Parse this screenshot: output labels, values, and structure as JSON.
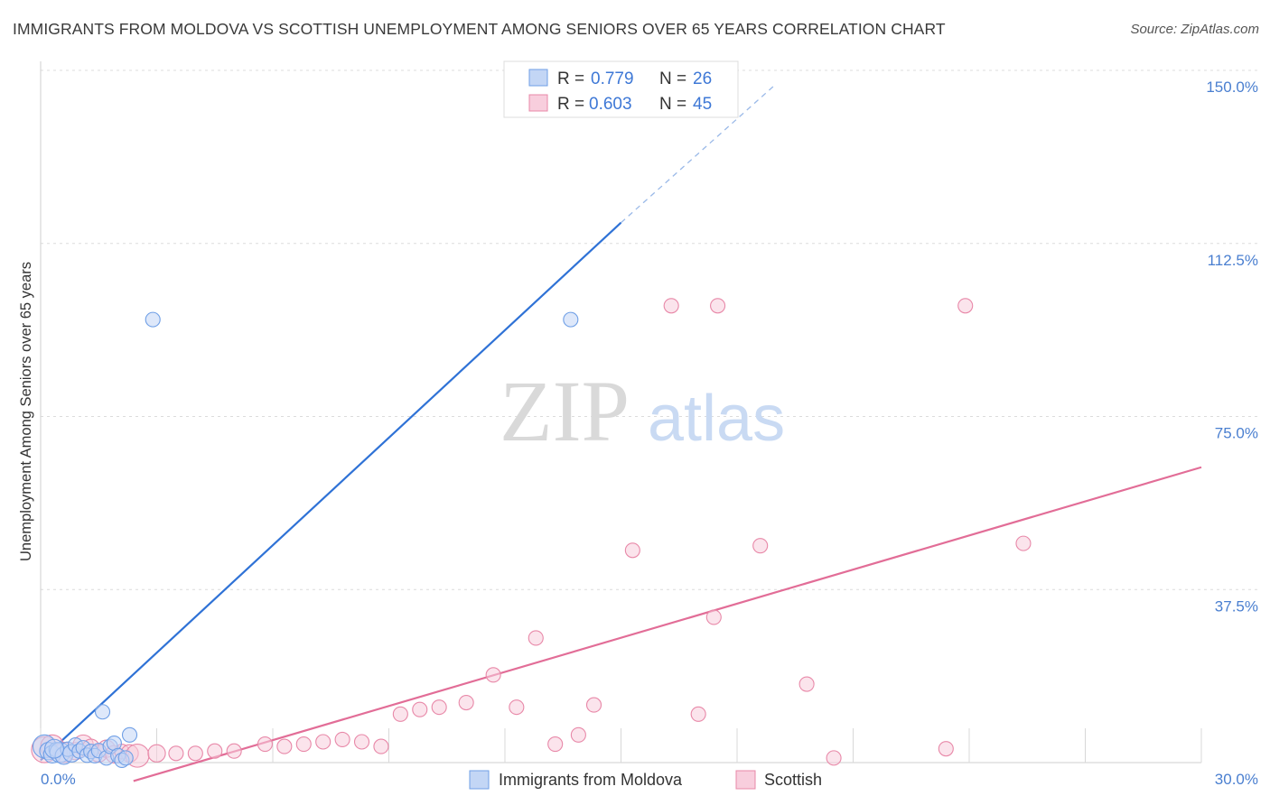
{
  "title": "IMMIGRANTS FROM MOLDOVA VS SCOTTISH UNEMPLOYMENT AMONG SENIORS OVER 65 YEARS CORRELATION CHART",
  "source": "Source: ZipAtlas.com",
  "watermark": {
    "zip": "ZIP",
    "atlas": "atlas"
  },
  "chart_data": {
    "type": "scatter",
    "title": "IMMIGRANTS FROM MOLDOVA VS SCOTTISH UNEMPLOYMENT AMONG SENIORS OVER 65 YEARS CORRELATION CHART",
    "xlabel": "",
    "ylabel": "Unemployment Among Seniors over 65 years",
    "xlim": [
      0,
      30
    ],
    "ylim": [
      0,
      150
    ],
    "x_tick_labels": [
      "0.0%",
      "30.0%"
    ],
    "y_ticks": [
      37.5,
      75.0,
      112.5,
      150.0
    ],
    "y_tick_labels": [
      "37.5%",
      "75.0%",
      "112.5%",
      "150.0%"
    ],
    "grid": true,
    "legend": {
      "placement": "top-center",
      "entries": [
        {
          "r_label": "R =",
          "r_value": "0.779",
          "n_label": "N =",
          "n_value": "26"
        },
        {
          "r_label": "R =",
          "r_value": "0.603",
          "n_label": "N =",
          "n_value": "45"
        }
      ]
    },
    "series": [
      {
        "name": "Immigrants from Moldova",
        "color": "#6f9fe6",
        "fill": "#c3d6f5",
        "trend": {
          "x0": 0.0,
          "y0": 0.5,
          "x1": 15.0,
          "y1": 117.0,
          "dash_to_x": 19.0,
          "dash_to_y": 147.0
        },
        "points": [
          [
            0.1,
            3.5,
            1.6
          ],
          [
            0.2,
            2.5,
            1.2
          ],
          [
            0.3,
            1.8,
            1.2
          ],
          [
            0.4,
            2.8,
            1.0
          ],
          [
            0.5,
            2.2,
            1.4
          ],
          [
            0.6,
            1.5,
            1.2
          ],
          [
            0.7,
            2.9,
            1.0
          ],
          [
            0.8,
            2.0,
            1.2
          ],
          [
            0.9,
            3.8,
            1.0
          ],
          [
            1.0,
            2.5,
            1.0
          ],
          [
            1.1,
            3.2,
            1.0
          ],
          [
            1.2,
            1.6,
            1.0
          ],
          [
            1.3,
            2.4,
            1.0
          ],
          [
            1.4,
            1.5,
            1.0
          ],
          [
            1.5,
            2.6,
            1.0
          ],
          [
            1.6,
            11.0,
            1.0
          ],
          [
            1.7,
            1.0,
            1.0
          ],
          [
            1.8,
            3.5,
            1.0
          ],
          [
            1.9,
            4.2,
            1.0
          ],
          [
            2.0,
            1.5,
            1.0
          ],
          [
            2.1,
            0.5,
            1.0
          ],
          [
            2.2,
            1.0,
            1.0
          ],
          [
            2.3,
            6.0,
            1.0
          ],
          [
            2.9,
            96.0,
            1.0
          ],
          [
            13.7,
            96.0,
            1.0
          ],
          [
            0.35,
            3.0,
            1.3
          ]
        ]
      },
      {
        "name": "Scottish",
        "color": "#e888a8",
        "fill": "#f8cedd",
        "trend": {
          "x0": 2.4,
          "y0": -4.0,
          "x1": 30.0,
          "y1": 64.0
        },
        "points": [
          [
            0.1,
            2.8,
            1.8
          ],
          [
            0.3,
            3.5,
            1.6
          ],
          [
            0.6,
            2.2,
            1.4
          ],
          [
            0.9,
            2.5,
            1.2
          ],
          [
            1.1,
            3.8,
            1.4
          ],
          [
            1.3,
            3.2,
            1.2
          ],
          [
            1.5,
            2.0,
            1.2
          ],
          [
            1.7,
            3.0,
            1.2
          ],
          [
            1.9,
            1.8,
            1.2
          ],
          [
            2.1,
            2.4,
            1.0
          ],
          [
            2.3,
            2.0,
            1.2
          ],
          [
            2.5,
            1.5,
            1.6
          ],
          [
            3.0,
            2.0,
            1.2
          ],
          [
            3.5,
            2.0,
            1.0
          ],
          [
            4.0,
            2.0,
            1.0
          ],
          [
            4.5,
            2.5,
            1.0
          ],
          [
            5.0,
            2.5,
            1.0
          ],
          [
            5.8,
            4.0,
            1.0
          ],
          [
            6.3,
            3.5,
            1.0
          ],
          [
            6.8,
            4.0,
            1.0
          ],
          [
            7.3,
            4.5,
            1.0
          ],
          [
            7.8,
            5.0,
            1.0
          ],
          [
            8.3,
            4.5,
            1.0
          ],
          [
            8.8,
            3.5,
            1.0
          ],
          [
            9.3,
            10.5,
            1.0
          ],
          [
            9.8,
            11.5,
            1.0
          ],
          [
            10.3,
            12.0,
            1.0
          ],
          [
            11.0,
            13.0,
            1.0
          ],
          [
            11.7,
            19.0,
            1.0
          ],
          [
            12.3,
            12.0,
            1.0
          ],
          [
            12.8,
            27.0,
            1.0
          ],
          [
            13.3,
            4.0,
            1.0
          ],
          [
            13.9,
            6.0,
            1.0
          ],
          [
            14.3,
            12.5,
            1.0
          ],
          [
            15.3,
            46.0,
            1.0
          ],
          [
            16.3,
            99.0,
            1.0
          ],
          [
            17.0,
            10.5,
            1.0
          ],
          [
            17.4,
            31.5,
            1.0
          ],
          [
            17.5,
            99.0,
            1.0
          ],
          [
            18.6,
            47.0,
            1.0
          ],
          [
            19.8,
            17.0,
            1.0
          ],
          [
            20.5,
            1.0,
            1.0
          ],
          [
            23.4,
            3.0,
            1.0
          ],
          [
            23.9,
            99.0,
            1.0
          ],
          [
            25.4,
            47.5,
            1.0
          ]
        ]
      }
    ],
    "extra_points_note": "",
    "bottom_legend": [
      "Immigrants from Moldova",
      "Scottish"
    ]
  }
}
